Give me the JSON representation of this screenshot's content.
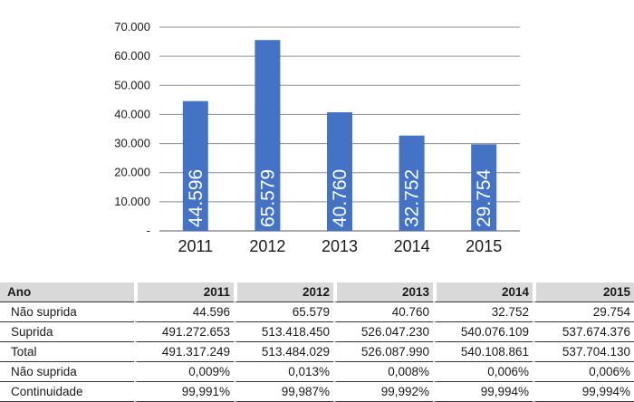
{
  "chart_data": {
    "type": "bar",
    "categories": [
      "2011",
      "2012",
      "2013",
      "2014",
      "2015"
    ],
    "values": [
      44596,
      65579,
      40760,
      32752,
      29754
    ],
    "value_labels": [
      "44.596",
      "65.579",
      "40.760",
      "32.752",
      "29.754"
    ],
    "y_ticks": [
      "-",
      "10.000",
      "20.000",
      "30.000",
      "40.000",
      "50.000",
      "60.000",
      "70.000"
    ],
    "ylim": [
      0,
      70000
    ],
    "title": "",
    "xlabel": "",
    "ylabel": "",
    "grid": true,
    "colors": {
      "bar": "#4472c4",
      "label": "#ffffff",
      "gridline": "#8c8c8c"
    }
  },
  "table": {
    "header": [
      "Ano",
      "2011",
      "2012",
      "2013",
      "2014",
      "2015"
    ],
    "rows": [
      [
        "Não suprida",
        "44.596",
        "65.579",
        "40.760",
        "32.752",
        "29.754"
      ],
      [
        "Suprida",
        "491.272.653",
        "513.418.450",
        "526.047.230",
        "540.076.109",
        "537.674.376"
      ],
      [
        "Total",
        "491.317.249",
        "513.484.029",
        "526.087.990",
        "540.108.861",
        "537.704.130"
      ],
      [
        "Não suprida",
        "0,009%",
        "0,013%",
        "0,008%",
        "0,006%",
        "0,006%"
      ],
      [
        "Continuidade",
        "99,991%",
        "99,987%",
        "99,992%",
        "99,994%",
        "99,994%"
      ]
    ],
    "header_bg": "#d9d9d9"
  }
}
